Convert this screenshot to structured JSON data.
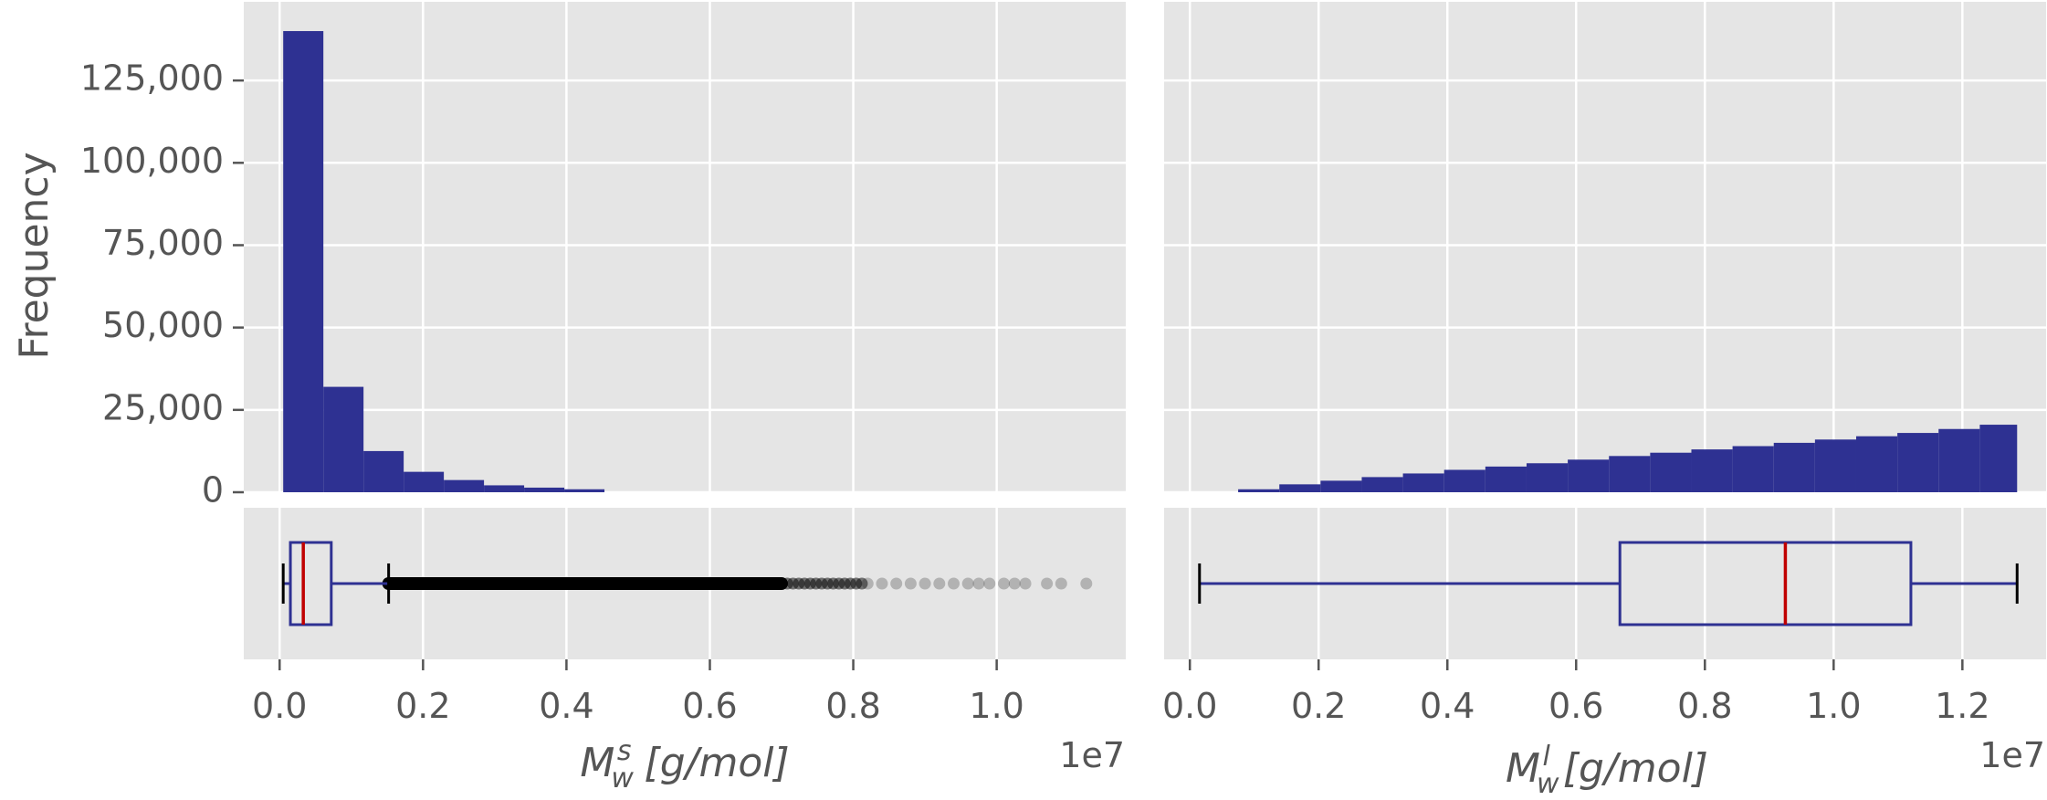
{
  "chart_data": [
    {
      "type": "bar",
      "subtype": "histogram",
      "panel": "top-left",
      "ylabel": "Frequency",
      "xlim": [
        -0.05,
        1.18
      ],
      "xscale_note": "1e7",
      "ylim": [
        0,
        145000
      ],
      "yticks": [
        0,
        25000,
        50000,
        75000,
        100000,
        125000
      ],
      "ytick_labels": [
        "0",
        "25,000",
        "50,000",
        "75,000",
        "100,000",
        "125,000"
      ],
      "grid": true,
      "bar_color": "#2e3192",
      "bins": [
        {
          "x0": 0.005,
          "x1": 0.061,
          "count": 140000
        },
        {
          "x0": 0.061,
          "x1": 0.117,
          "count": 32000
        },
        {
          "x0": 0.117,
          "x1": 0.173,
          "count": 12500
        },
        {
          "x0": 0.173,
          "x1": 0.229,
          "count": 6200
        },
        {
          "x0": 0.229,
          "x1": 0.285,
          "count": 3700
        },
        {
          "x0": 0.285,
          "x1": 0.341,
          "count": 2100
        },
        {
          "x0": 0.341,
          "x1": 0.397,
          "count": 1400
        },
        {
          "x0": 0.397,
          "x1": 0.453,
          "count": 900
        },
        {
          "x0": 0.453,
          "x1": 0.509,
          "count": 0
        }
      ]
    },
    {
      "type": "bar",
      "subtype": "histogram",
      "panel": "top-right",
      "xlim": [
        -0.04,
        1.33
      ],
      "xscale_note": "1e7",
      "ylim": [
        0,
        145000
      ],
      "grid": true,
      "bar_color": "#2e3192",
      "bins": [
        {
          "x0": 0.075,
          "x1": 0.139,
          "count": 900
        },
        {
          "x0": 0.139,
          "x1": 0.203,
          "count": 2400
        },
        {
          "x0": 0.203,
          "x1": 0.267,
          "count": 3500
        },
        {
          "x0": 0.267,
          "x1": 0.331,
          "count": 4600
        },
        {
          "x0": 0.331,
          "x1": 0.395,
          "count": 5700
        },
        {
          "x0": 0.395,
          "x1": 0.459,
          "count": 6800
        },
        {
          "x0": 0.459,
          "x1": 0.523,
          "count": 7800
        },
        {
          "x0": 0.523,
          "x1": 0.587,
          "count": 8800
        },
        {
          "x0": 0.587,
          "x1": 0.651,
          "count": 9900
        },
        {
          "x0": 0.651,
          "x1": 0.715,
          "count": 11000
        },
        {
          "x0": 0.715,
          "x1": 0.779,
          "count": 12000
        },
        {
          "x0": 0.779,
          "x1": 0.843,
          "count": 13000
        },
        {
          "x0": 0.843,
          "x1": 0.907,
          "count": 14000
        },
        {
          "x0": 0.907,
          "x1": 0.971,
          "count": 15000
        },
        {
          "x0": 0.971,
          "x1": 1.035,
          "count": 16000
        },
        {
          "x0": 1.035,
          "x1": 1.099,
          "count": 17000
        },
        {
          "x0": 1.099,
          "x1": 1.163,
          "count": 18000
        },
        {
          "x0": 1.163,
          "x1": 1.227,
          "count": 19200
        },
        {
          "x0": 1.227,
          "x1": 1.285,
          "count": 20500
        }
      ]
    },
    {
      "type": "boxplot",
      "panel": "bottom-left",
      "xlabel_base": "M",
      "xlabel_sub": "w",
      "xlabel_sup": "s",
      "xlabel_unit": "[g/mol]",
      "xlim": [
        -0.05,
        1.18
      ],
      "xticks": [
        0.0,
        0.2,
        0.4,
        0.6,
        0.8,
        1.0
      ],
      "xtick_labels": [
        "0.0",
        "0.2",
        "0.4",
        "0.6",
        "0.8",
        "1.0"
      ],
      "offset_text": "1e7",
      "whisker_low": 0.005,
      "q1": 0.015,
      "median": 0.033,
      "q3": 0.072,
      "whisker_high": 0.152,
      "box_color": "#2e3192",
      "median_color": "#c00000",
      "outlier_color": "#000000",
      "outlier_range": [
        0.152,
        1.125
      ],
      "sparse_outliers": [
        0.82,
        0.84,
        0.86,
        0.88,
        0.9,
        0.92,
        0.94,
        0.96,
        0.975,
        0.99,
        1.01,
        1.025,
        1.04,
        1.07,
        1.09,
        1.125
      ]
    },
    {
      "type": "boxplot",
      "panel": "bottom-right",
      "xlabel_base": "M",
      "xlabel_sub": "w",
      "xlabel_sup": "l",
      "xlabel_unit": "[g/mol]",
      "xlim": [
        -0.04,
        1.33
      ],
      "xticks": [
        0.0,
        0.2,
        0.4,
        0.6,
        0.8,
        1.0,
        1.2
      ],
      "xtick_labels": [
        "0.0",
        "0.2",
        "0.4",
        "0.6",
        "0.8",
        "1.0",
        "1.2"
      ],
      "offset_text": "1e7",
      "whisker_low": 0.015,
      "q1": 0.668,
      "median": 0.925,
      "q3": 1.12,
      "whisker_high": 1.285,
      "box_color": "#2e3192",
      "median_color": "#c00000"
    }
  ]
}
